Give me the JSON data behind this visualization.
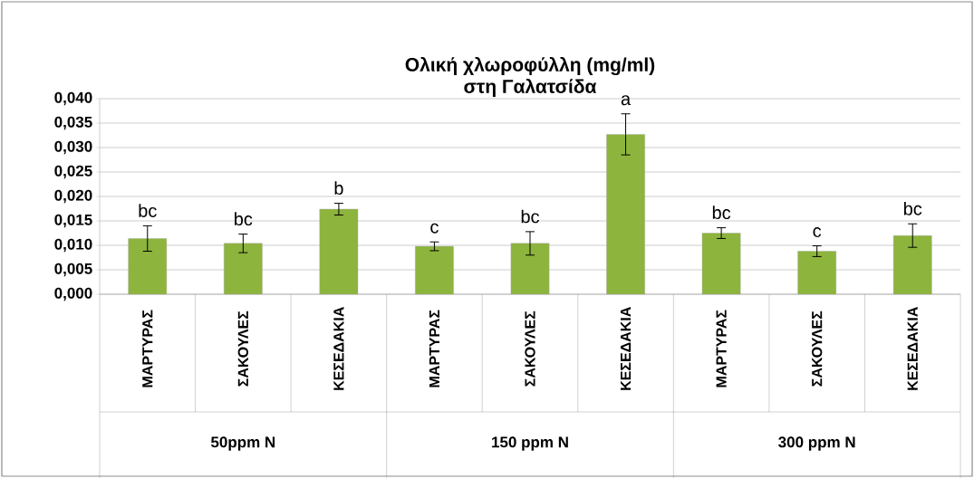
{
  "chart_data": {
    "type": "bar",
    "title": "Ολική χλωροφύλλη (mg/ml)",
    "subtitle": "στη Γαλατσίδα",
    "categories": [
      "ΜΑΡΤΥΡΑΣ",
      "ΣΑΚΟΥΛΕΣ",
      "ΚΕΣΕΔΑΚΙΑ",
      "ΜΑΡΤΥΡΑΣ",
      "ΣΑΚΟΥΛΕΣ",
      "ΚΕΣΕΔΑΚΙΑ",
      "ΜΑΡΤΥΡΑΣ",
      "ΣΑΚΟΥΛΕΣ",
      "ΚΕΣΕΔΑΚΙΑ"
    ],
    "values": [
      0.0114,
      0.0104,
      0.0174,
      0.0098,
      0.0104,
      0.0327,
      0.0125,
      0.0088,
      0.012
    ],
    "errors": [
      0.0026,
      0.0019,
      0.0012,
      0.0009,
      0.0024,
      0.0042,
      0.0011,
      0.0011,
      0.0024
    ],
    "color": "#8db43c",
    "ylim": [
      0,
      0.04
    ],
    "yticks": [
      {
        "value": 0,
        "label": "0,000"
      },
      {
        "value": 0.005,
        "label": "0,005"
      },
      {
        "value": 0.01,
        "label": "0,010"
      },
      {
        "value": 0.015,
        "label": "0,015"
      },
      {
        "value": 0.02,
        "label": "0,020"
      },
      {
        "value": 0.025,
        "label": "0,025"
      },
      {
        "value": 0.03,
        "label": "0,030"
      },
      {
        "value": 0.035,
        "label": "0,035"
      },
      {
        "value": 0.04,
        "label": "0,040"
      }
    ],
    "grid": "y",
    "annotations": [
      "bc",
      "bc",
      "b",
      "c",
      "bc",
      "a",
      "bc",
      "c",
      "bc",
      "50ppm N",
      "150 ppm N",
      "300 ppm N"
    ]
  }
}
